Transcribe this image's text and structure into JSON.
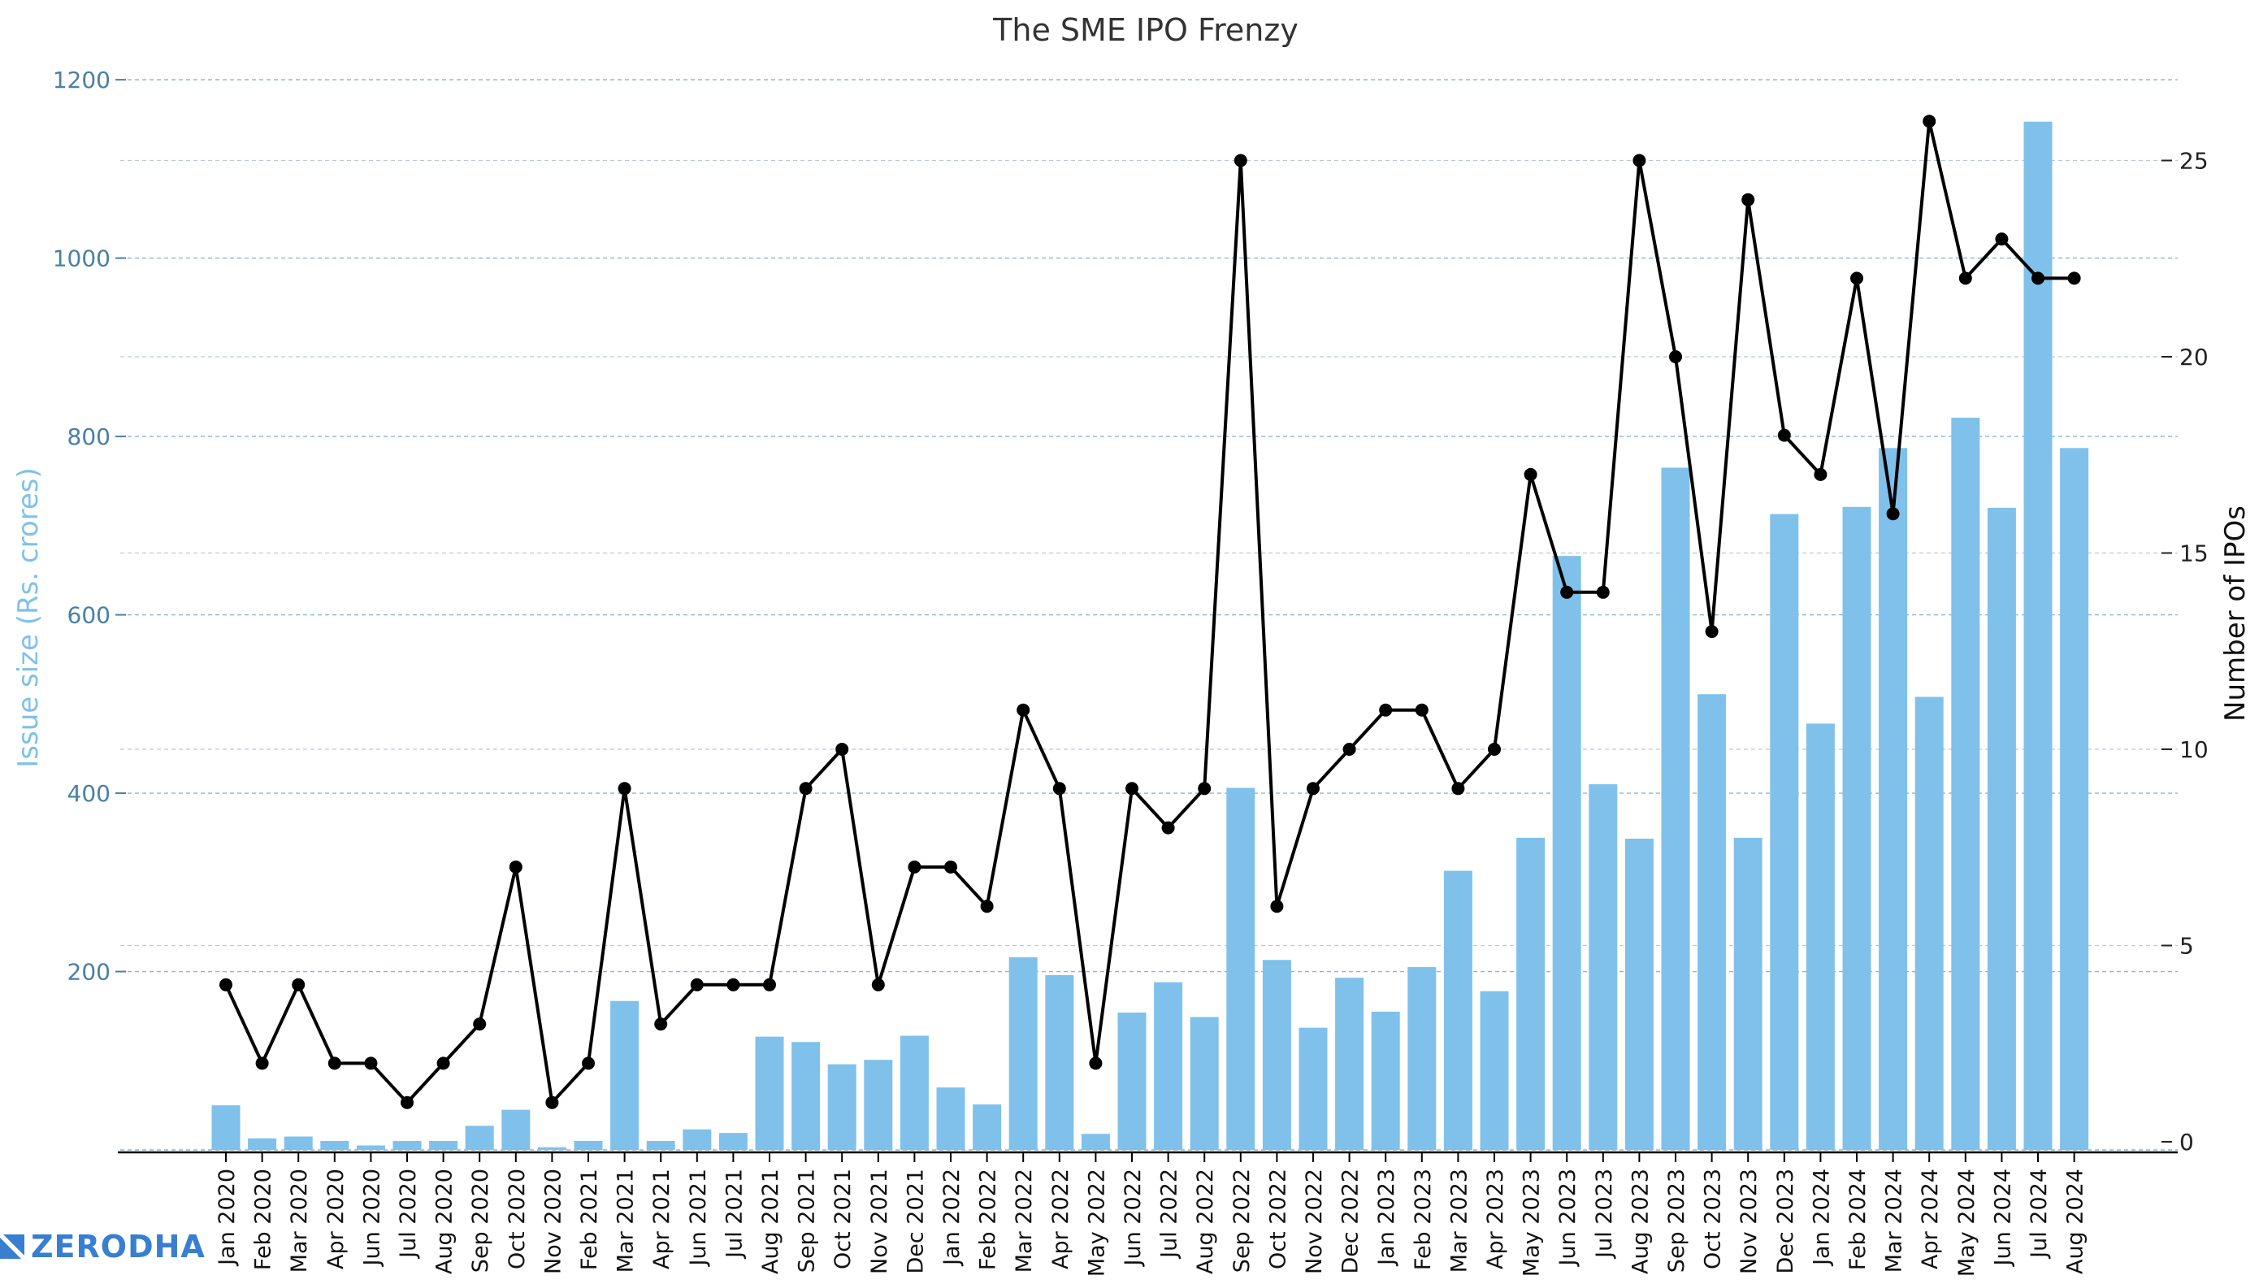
{
  "chart_data": {
    "type": "bar+line",
    "title": "The SME IPO Frenzy",
    "categories": [
      "Jan 2020",
      "Feb 2020",
      "Mar 2020",
      "Apr 2020",
      "Jun 2020",
      "Jul 2020",
      "Aug 2020",
      "Sep 2020",
      "Oct 2020",
      "Nov 2020",
      "Feb 2021",
      "Mar 2021",
      "Apr 2021",
      "Jun 2021",
      "Jul 2021",
      "Aug 2021",
      "Sep 2021",
      "Oct 2021",
      "Nov 2021",
      "Dec 2021",
      "Jan 2022",
      "Feb 2022",
      "Mar 2022",
      "Apr 2022",
      "May 2022",
      "Jun 2022",
      "Jul 2022",
      "Aug 2022",
      "Sep 2022",
      "Oct 2022",
      "Nov 2022",
      "Dec 2022",
      "Jan 2023",
      "Feb 2023",
      "Mar 2023",
      "Apr 2023",
      "May 2023",
      "Jun 2023",
      "Jul 2023",
      "Aug 2023",
      "Sep 2023",
      "Oct 2023",
      "Nov 2023",
      "Dec 2023",
      "Jan 2024",
      "Feb 2024",
      "Mar 2024",
      "Apr 2024",
      "May 2024",
      "Jun 2024",
      "Jul 2024",
      "Aug 2024"
    ],
    "series": [
      {
        "axis": "left",
        "type": "bar",
        "color": "#7fc1ea",
        "values": [
          50,
          13,
          15,
          10,
          5,
          10,
          10,
          27,
          45,
          3,
          10,
          167,
          10,
          23,
          19,
          127,
          121,
          96,
          101,
          128,
          70,
          51,
          216,
          196,
          18,
          154,
          188,
          149,
          406,
          213,
          137,
          193,
          155,
          205,
          313,
          178,
          350,
          666,
          410,
          349,
          765,
          511,
          350,
          713,
          478,
          721,
          787,
          508,
          821,
          720,
          1153,
          787
        ]
      },
      {
        "axis": "right",
        "type": "line",
        "color": "#000000",
        "values": [
          4,
          2,
          4,
          2,
          2,
          1,
          2,
          3,
          7,
          1,
          2,
          9,
          3,
          4,
          4,
          4,
          9,
          10,
          4,
          7,
          7,
          6,
          11,
          9,
          2,
          9,
          8,
          9,
          25,
          6,
          9,
          10,
          11,
          11,
          9,
          10,
          17,
          14,
          14,
          25,
          20,
          13,
          24,
          18,
          17,
          22,
          16,
          26,
          22,
          23,
          22,
          22
        ]
      }
    ],
    "left_axis": {
      "label": "Issue size (Rs. crores)",
      "ylim": [
        -10,
        1210
      ],
      "ticks": [
        "200",
        "400",
        "600",
        "800",
        "1000",
        "1200"
      ],
      "label_color": "#7fc1ea",
      "tick_color": "#4a7fa7"
    },
    "right_axis": {
      "label": "Number of IPOs",
      "ylim": [
        -0.27,
        27.5
      ],
      "ticks": [
        "0",
        "5",
        "10",
        "15",
        "20",
        "25"
      ]
    },
    "grid": true
  },
  "logo": {
    "text": "ZERODHA",
    "color": "#387ed1"
  }
}
